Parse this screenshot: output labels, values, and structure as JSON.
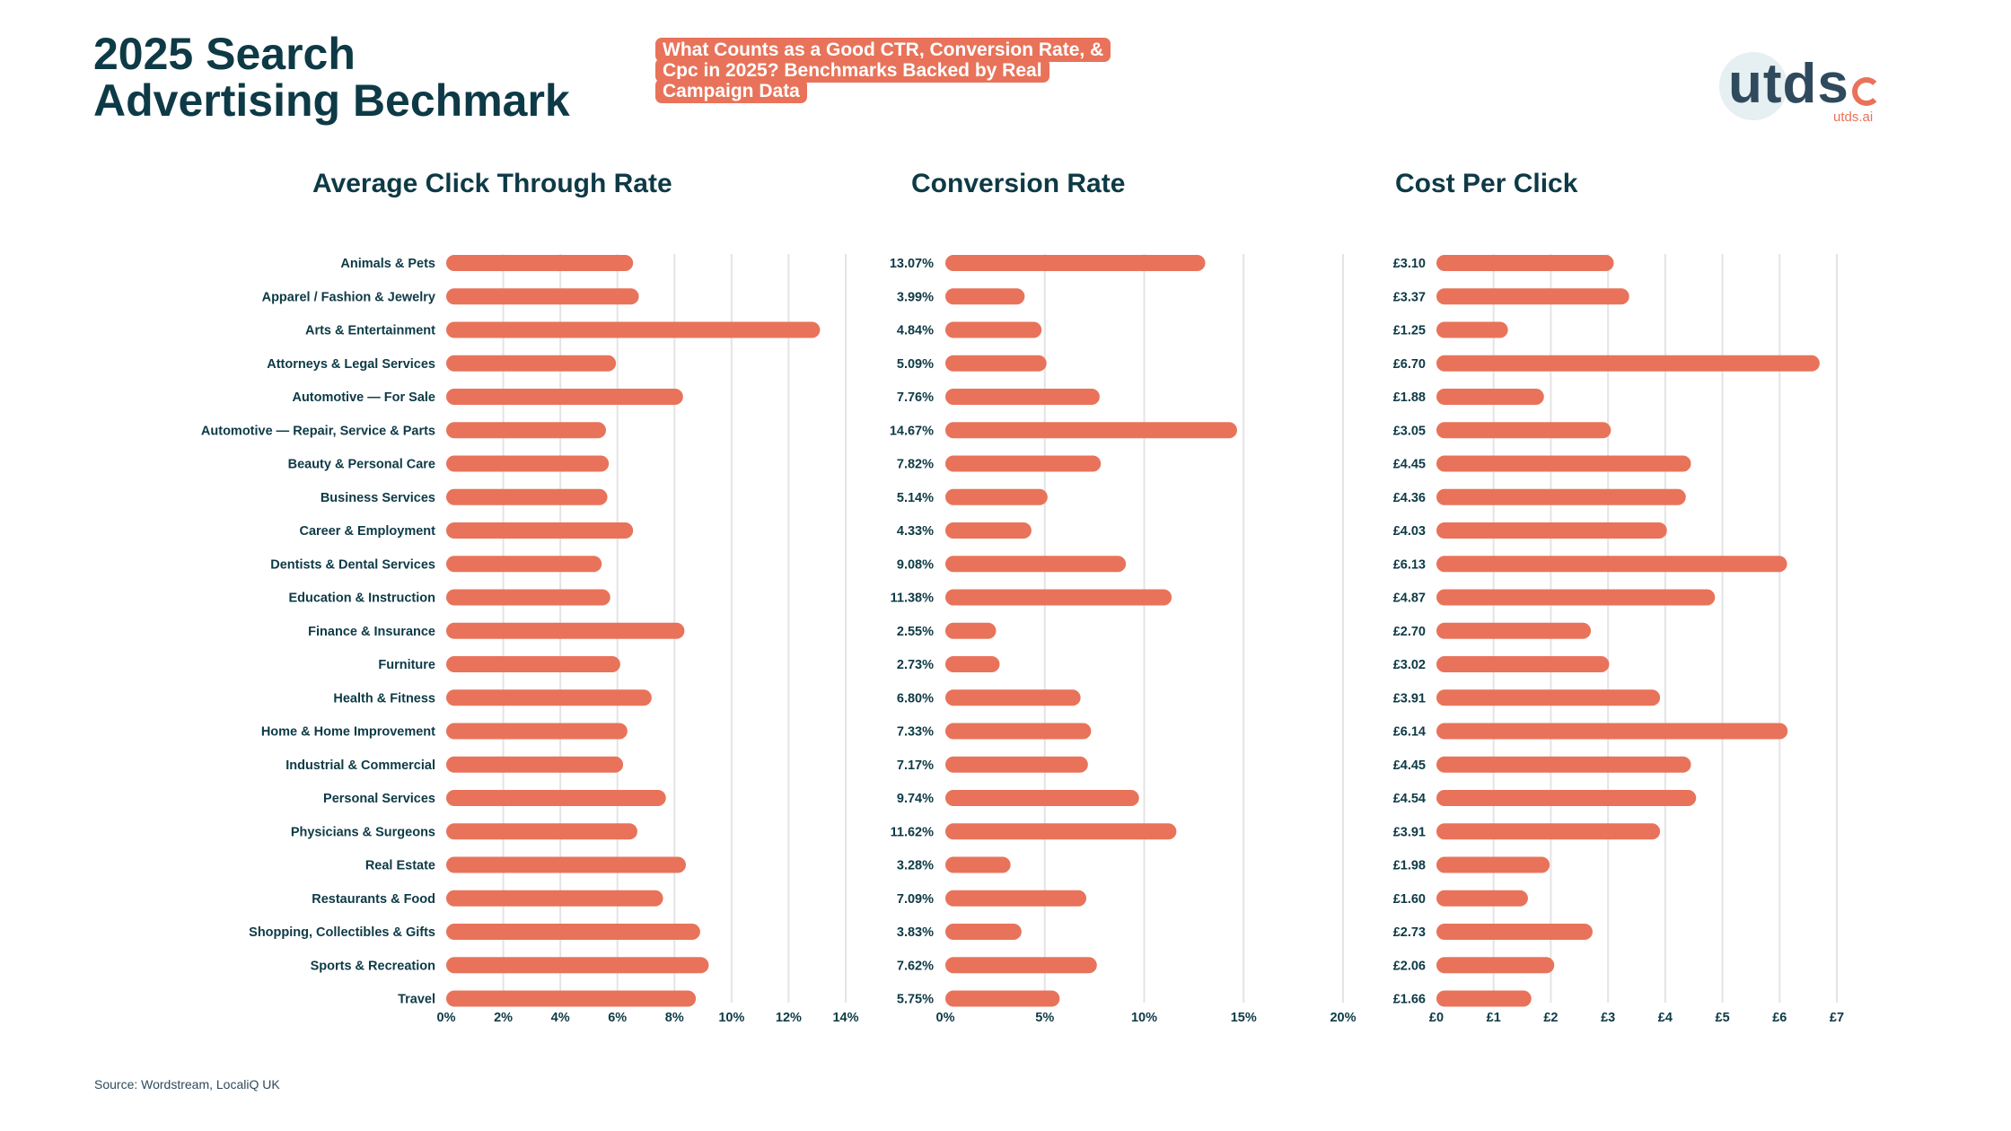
{
  "header": {
    "title_line1": "2025 Search",
    "title_line2": "Advertising Bechmark",
    "tagline": "What Counts as a Good CTR, Conversion Rate, & Cpc in 2025? Benchmarks Backed by Real Campaign Data"
  },
  "logo": {
    "wordmark": "utds",
    "url": "utds.ai"
  },
  "source": "Source: Wordstream, LocaliQ UK",
  "colors": {
    "bar": "#e8735a",
    "text": "#0d3a46",
    "grid": "#e4e4e4"
  },
  "chart_data": [
    {
      "type": "bar",
      "orientation": "horizontal",
      "title": "Average Click Through Rate",
      "categories": [
        "Animals & Pets",
        "Apparel / Fashion & Jewelry",
        "Arts & Entertainment",
        "Attorneys & Legal Services",
        "Automotive — For Sale",
        "Automotive — Repair, Service & Parts",
        "Beauty & Personal Care",
        "Business Services",
        "Career & Employment",
        "Dentists & Dental Services",
        "Education & Instruction",
        "Finance & Insurance",
        "Furniture",
        "Health & Fitness",
        "Home & Home Improvement",
        "Industrial & Commercial",
        "Personal Services",
        "Physicians & Surgeons",
        "Real Estate",
        "Restaurants & Food",
        "Shopping, Collectibles & Gifts",
        "Sports & Recreation",
        "Travel"
      ],
      "values": [
        6.55,
        6.75,
        13.1,
        5.95,
        8.3,
        5.6,
        5.7,
        5.65,
        6.55,
        5.45,
        5.75,
        8.35,
        6.1,
        7.2,
        6.35,
        6.2,
        7.7,
        6.7,
        8.4,
        7.6,
        8.9,
        9.2,
        8.75
      ],
      "value_labels": [],
      "xlim": [
        0,
        14
      ],
      "tick_values": [
        0,
        2,
        4,
        6,
        8,
        10,
        12,
        14
      ],
      "tick_labels": [
        "0%",
        "2%",
        "4%",
        "6%",
        "8%",
        "10%",
        "12%",
        "14%"
      ]
    },
    {
      "type": "bar",
      "orientation": "horizontal",
      "title": "Conversion Rate",
      "categories": [
        "Animals & Pets",
        "Apparel / Fashion & Jewelry",
        "Arts & Entertainment",
        "Attorneys & Legal Services",
        "Automotive — For Sale",
        "Automotive — Repair, Service & Parts",
        "Beauty & Personal Care",
        "Business Services",
        "Career & Employment",
        "Dentists & Dental Services",
        "Education & Instruction",
        "Finance & Insurance",
        "Furniture",
        "Health & Fitness",
        "Home & Home Improvement",
        "Industrial & Commercial",
        "Personal Services",
        "Physicians & Surgeons",
        "Real Estate",
        "Restaurants & Food",
        "Shopping, Collectibles & Gifts",
        "Sports & Recreation",
        "Travel"
      ],
      "values": [
        13.07,
        3.99,
        4.84,
        5.09,
        7.76,
        14.67,
        7.82,
        5.14,
        4.33,
        9.08,
        11.38,
        2.55,
        2.73,
        6.8,
        7.33,
        7.17,
        9.74,
        11.62,
        3.28,
        7.09,
        3.83,
        7.62,
        5.75
      ],
      "value_labels": [
        "13.07%",
        "3.99%",
        "4.84%",
        "5.09%",
        "7.76%",
        "14.67%",
        "7.82%",
        "5.14%",
        "4.33%",
        "9.08%",
        "11.38%",
        "2.55%",
        "2.73%",
        "6.80%",
        "7.33%",
        "7.17%",
        "9.74%",
        "11.62%",
        "3.28%",
        "7.09%",
        "3.83%",
        "7.62%",
        "5.75%"
      ],
      "xlim": [
        0,
        20
      ],
      "tick_values": [
        0,
        5,
        10,
        15,
        20
      ],
      "tick_labels": [
        "0%",
        "5%",
        "10%",
        "15%",
        "20%"
      ]
    },
    {
      "type": "bar",
      "orientation": "horizontal",
      "title": "Cost Per Click",
      "categories": [
        "Animals & Pets",
        "Apparel / Fashion & Jewelry",
        "Arts & Entertainment",
        "Attorneys & Legal Services",
        "Automotive — For Sale",
        "Automotive — Repair, Service & Parts",
        "Beauty & Personal Care",
        "Business Services",
        "Career & Employment",
        "Dentists & Dental Services",
        "Education & Instruction",
        "Finance & Insurance",
        "Furniture",
        "Health & Fitness",
        "Home & Home Improvement",
        "Industrial & Commercial",
        "Personal Services",
        "Physicians & Surgeons",
        "Real Estate",
        "Restaurants & Food",
        "Shopping, Collectibles & Gifts",
        "Sports & Recreation",
        "Travel"
      ],
      "values": [
        3.1,
        3.37,
        1.25,
        6.7,
        1.88,
        3.05,
        4.45,
        4.36,
        4.03,
        6.13,
        4.87,
        2.7,
        3.02,
        3.91,
        6.14,
        4.45,
        4.54,
        3.91,
        1.98,
        1.6,
        2.73,
        2.06,
        1.66
      ],
      "value_labels": [
        "£3.10",
        "£3.37",
        "£1.25",
        "£6.70",
        "£1.88",
        "£3.05",
        "£4.45",
        "£4.36",
        "£4.03",
        "£6.13",
        "£4.87",
        "£2.70",
        "£3.02",
        "£3.91",
        "£6.14",
        "£4.45",
        "£4.54",
        "£3.91",
        "£1.98",
        "£1.60",
        "£2.73",
        "£2.06",
        "£1.66"
      ],
      "xlim": [
        0,
        7
      ],
      "tick_values": [
        0,
        1,
        2,
        3,
        4,
        5,
        6,
        7
      ],
      "tick_labels": [
        "£0",
        "£1",
        "£2",
        "£3",
        "£4",
        "£5",
        "£6",
        "£7"
      ]
    }
  ]
}
